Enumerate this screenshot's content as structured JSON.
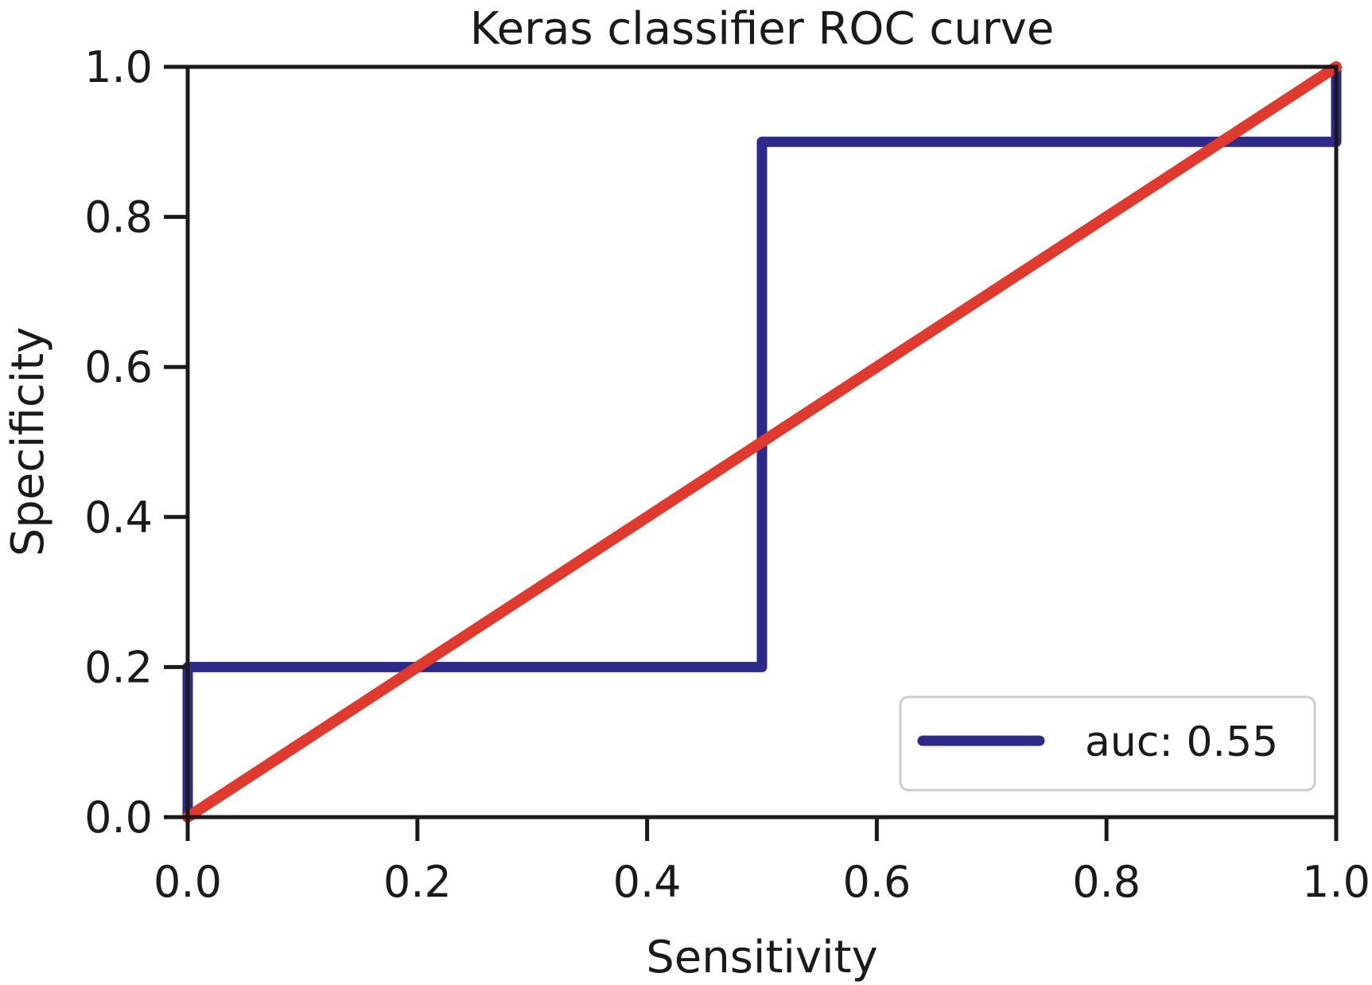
{
  "chart_data": {
    "type": "line",
    "title": "Keras classifier ROC curve",
    "xlabel": "Sensitivity",
    "ylabel": "Specificity",
    "xlim": [
      0,
      1
    ],
    "ylim": [
      0,
      1
    ],
    "xticks": [
      "0.0",
      "0.2",
      "0.4",
      "0.6",
      "0.8",
      "1.0"
    ],
    "yticks": [
      "0.0",
      "0.2",
      "0.4",
      "0.6",
      "0.8",
      "1.0"
    ],
    "grid": false,
    "legend_position": "lower-right",
    "series": [
      {
        "name": "auc: 0.55",
        "color": "#2e2a8a",
        "x": [
          0.0,
          0.0,
          0.5,
          0.5,
          1.0,
          1.0
        ],
        "y": [
          0.0,
          0.2,
          0.2,
          0.9,
          0.9,
          1.0
        ]
      },
      {
        "color": "#e03a2e",
        "x": [
          0.0,
          1.0
        ],
        "y": [
          0.0,
          1.0
        ]
      }
    ]
  }
}
